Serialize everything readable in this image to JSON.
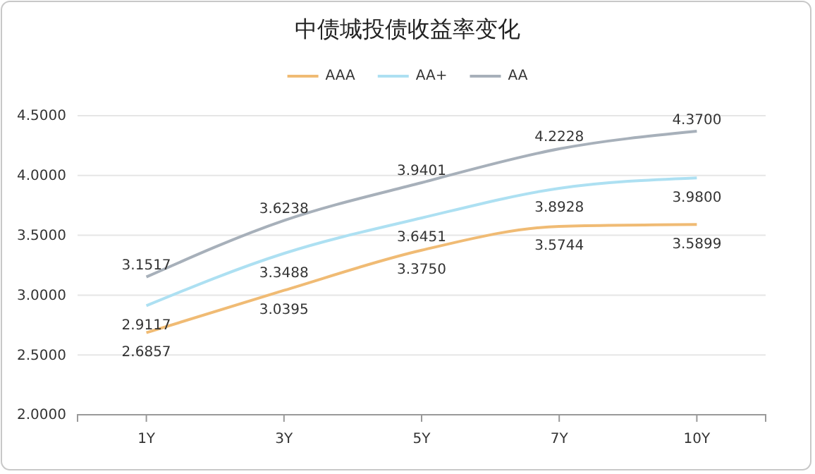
{
  "chart_data": {
    "type": "line",
    "title": "中债城投债收益率变化",
    "categories": [
      "1Y",
      "3Y",
      "5Y",
      "7Y",
      "10Y"
    ],
    "series": [
      {
        "name": "AAA",
        "color": "#f0bb74",
        "values": [
          2.6857,
          3.0395,
          3.375,
          3.5744,
          3.5899
        ],
        "value_labels": [
          "2.6857",
          "3.0395",
          "3.3750",
          "3.5744",
          "3.5899"
        ]
      },
      {
        "name": "AA+",
        "color": "#ade0f2",
        "values": [
          2.9117,
          3.3488,
          3.6451,
          3.8928,
          3.98
        ],
        "value_labels": [
          "2.9117",
          "3.3488",
          "3.6451",
          "3.8928",
          "3.9800"
        ]
      },
      {
        "name": "AA",
        "color": "#a7b0ba",
        "values": [
          3.1517,
          3.6238,
          3.9401,
          4.2228,
          4.37
        ],
        "value_labels": [
          "3.1517",
          "3.6238",
          "3.9401",
          "4.2228",
          "4.3700"
        ]
      }
    ],
    "ylim": [
      2.0,
      4.5
    ],
    "yticks": [
      {
        "value": 2.0,
        "label": "2.0000"
      },
      {
        "value": 2.5,
        "label": "2.5000"
      },
      {
        "value": 3.0,
        "label": "3.0000"
      },
      {
        "value": 3.5,
        "label": "3.5000"
      },
      {
        "value": 4.0,
        "label": "4.0000"
      },
      {
        "value": 4.5,
        "label": "4.5000"
      }
    ],
    "grid": "y",
    "legend": "top",
    "marker": "none"
  }
}
